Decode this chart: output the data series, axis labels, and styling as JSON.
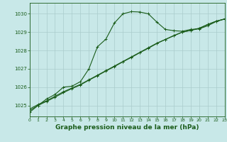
{
  "background_color": "#c8e8e8",
  "grid_color": "#aacccc",
  "line_color": "#1a5c1a",
  "xlabel": "Graphe pression niveau de la mer (hPa)",
  "xlabel_fontsize": 6.5,
  "xlim": [
    0,
    23
  ],
  "ylim": [
    1024.4,
    1030.6
  ],
  "xticks": [
    0,
    1,
    2,
    3,
    4,
    5,
    6,
    7,
    8,
    9,
    10,
    11,
    12,
    13,
    14,
    15,
    16,
    17,
    18,
    19,
    20,
    21,
    22,
    23
  ],
  "yticks": [
    1025,
    1026,
    1027,
    1028,
    1029,
    1030
  ],
  "series_curve_x": [
    0,
    1,
    2,
    3,
    4,
    5,
    6,
    7,
    8,
    9,
    10,
    11,
    12,
    13,
    14,
    15,
    16,
    17,
    18,
    19,
    20,
    21,
    22,
    23
  ],
  "series_curve_y": [
    1024.62,
    1025.0,
    1025.35,
    1025.6,
    1026.0,
    1026.05,
    1026.3,
    1027.0,
    1028.2,
    1028.62,
    1029.5,
    1030.0,
    1030.12,
    1030.1,
    1030.0,
    1029.55,
    1029.15,
    1029.08,
    1029.05,
    1029.15,
    1029.18,
    1029.35,
    1029.58,
    1029.72
  ],
  "series_lin1_x": [
    0,
    1,
    2,
    3,
    4,
    5,
    6,
    7,
    8,
    9,
    10,
    11,
    12,
    13,
    14,
    15,
    16,
    17,
    18,
    19,
    20,
    21,
    22,
    23
  ],
  "series_lin1_y": [
    1024.8,
    1025.05,
    1025.25,
    1025.5,
    1025.75,
    1025.95,
    1026.15,
    1026.4,
    1026.65,
    1026.9,
    1027.15,
    1027.4,
    1027.65,
    1027.9,
    1028.15,
    1028.4,
    1028.6,
    1028.8,
    1029.0,
    1029.1,
    1029.2,
    1029.42,
    1029.6,
    1029.72
  ],
  "series_lin2_x": [
    0,
    1,
    2,
    3,
    4,
    5,
    6,
    7,
    8,
    9,
    10,
    11,
    12,
    13,
    14,
    15,
    16,
    17,
    18,
    19,
    20,
    21,
    22,
    23
  ],
  "series_lin2_y": [
    1024.72,
    1025.0,
    1025.22,
    1025.45,
    1025.7,
    1025.92,
    1026.12,
    1026.38,
    1026.62,
    1026.88,
    1027.12,
    1027.38,
    1027.62,
    1027.88,
    1028.12,
    1028.38,
    1028.6,
    1028.82,
    1029.0,
    1029.1,
    1029.22,
    1029.42,
    1029.6,
    1029.72
  ]
}
